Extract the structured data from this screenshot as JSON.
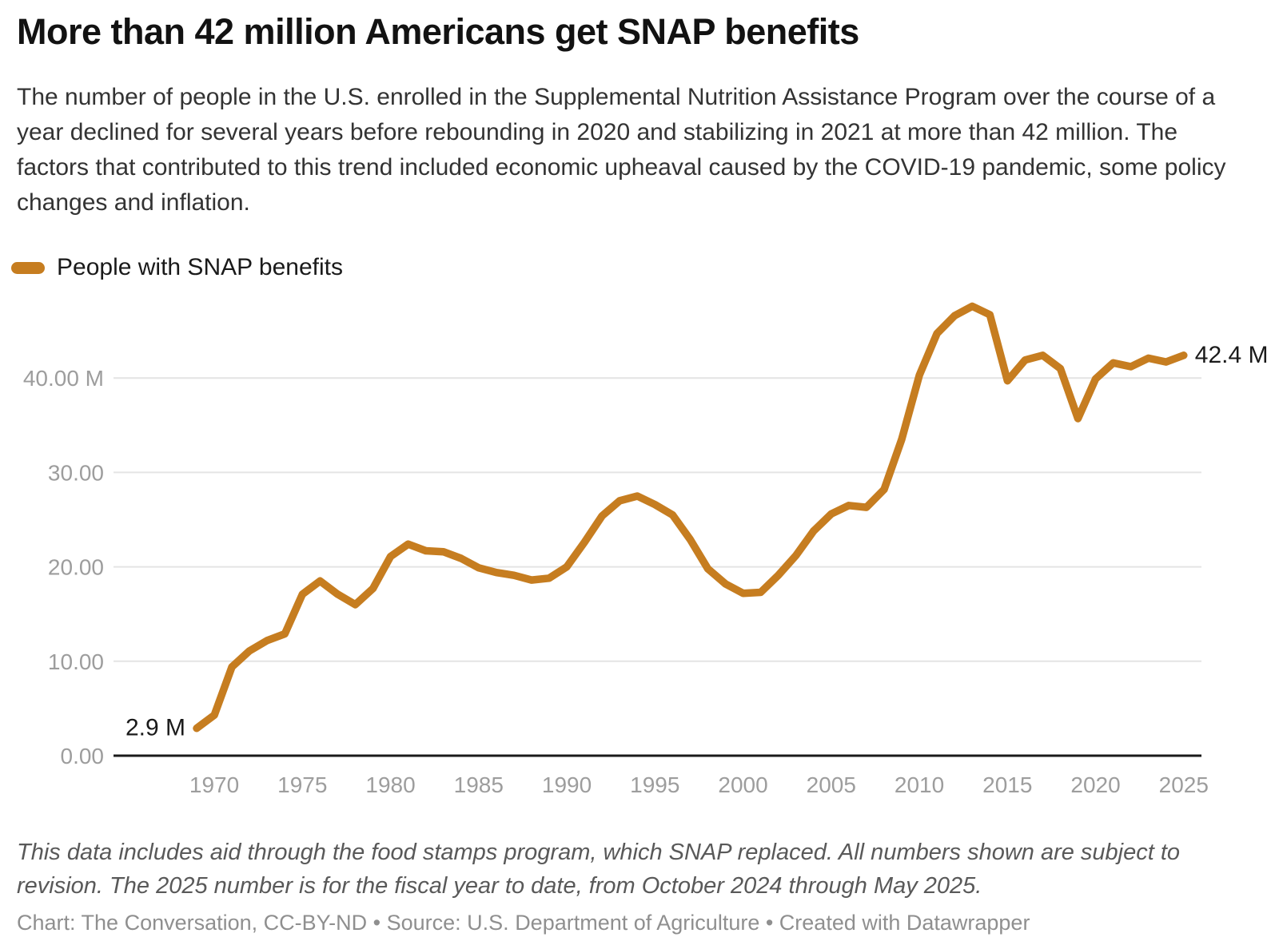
{
  "header": {
    "title": "More than 42 million Americans get SNAP benefits",
    "description": "The number of people in the U.S. enrolled in the Supplemental Nutrition Assistance Program over the course of a year declined for several years before rebounding in 2020 and stabilizing in 2021 at more than 42 million. The factors that contributed to this trend included economic upheaval caused by the COVID-19 pandemic, some policy changes and inflation."
  },
  "legend": {
    "label": "People with SNAP benefits"
  },
  "colors": {
    "accent": "#C67D20",
    "axis": "#1a1a1a",
    "grid": "#e4e4e4",
    "tick_text": "#9d9d9d",
    "value_label_text": "#1a1a1a"
  },
  "chart_data": {
    "type": "line",
    "title": "More than 42 million Americans get SNAP benefits",
    "xlabel": "",
    "ylabel": "",
    "unit": "millions of people",
    "grid": "horizontal",
    "legend_position": "top-left",
    "xlim": [
      1969,
      2025
    ],
    "ylim": [
      0,
      48.5
    ],
    "series": [
      {
        "name": "People with SNAP benefits",
        "color": "#C67D20"
      }
    ],
    "x": [
      1969,
      1970,
      1971,
      1972,
      1973,
      1974,
      1975,
      1976,
      1977,
      1978,
      1979,
      1980,
      1981,
      1982,
      1983,
      1984,
      1985,
      1986,
      1987,
      1988,
      1989,
      1990,
      1991,
      1992,
      1993,
      1994,
      1995,
      1996,
      1997,
      1998,
      1999,
      2000,
      2001,
      2002,
      2003,
      2004,
      2005,
      2006,
      2007,
      2008,
      2009,
      2010,
      2011,
      2012,
      2013,
      2014,
      2015,
      2016,
      2017,
      2018,
      2019,
      2020,
      2021,
      2022,
      2023,
      2024,
      2025
    ],
    "values": [
      2.9,
      4.3,
      9.4,
      11.1,
      12.2,
      12.9,
      17.1,
      18.5,
      17.1,
      16.0,
      17.7,
      21.1,
      22.4,
      21.7,
      21.6,
      20.9,
      19.9,
      19.4,
      19.1,
      18.6,
      18.8,
      20.0,
      22.6,
      25.4,
      27.0,
      27.5,
      26.6,
      25.5,
      22.9,
      19.8,
      18.2,
      17.2,
      17.3,
      19.1,
      21.2,
      23.8,
      25.6,
      26.5,
      26.3,
      28.2,
      33.5,
      40.3,
      44.7,
      46.6,
      47.6,
      46.7,
      39.7,
      41.9,
      42.4,
      41.0,
      35.7,
      39.9,
      41.6,
      41.2,
      42.1,
      41.7,
      42.4
    ],
    "y_ticks": [
      {
        "value": 0,
        "label": "0.00"
      },
      {
        "value": 10,
        "label": "10.00"
      },
      {
        "value": 20,
        "label": "20.00"
      },
      {
        "value": 30,
        "label": "30.00"
      },
      {
        "value": 40,
        "label": "40.00 M"
      }
    ],
    "x_ticks": [
      1970,
      1975,
      1980,
      1985,
      1990,
      1995,
      2000,
      2005,
      2010,
      2015,
      2020,
      2025
    ],
    "annotations": [
      {
        "year": 1969,
        "label": "2.9 M"
      },
      {
        "year": 2025,
        "label": "42.4 M"
      }
    ]
  },
  "footer": {
    "note": "This data includes aid through the food stamps program, which SNAP replaced. All numbers shown are subject to revision. The 2025 number is for the fiscal year to date, from October 2024 through May 2025.",
    "attribution": "Chart: The Conversation, CC-BY-ND • Source: U.S. Department of Agriculture • Created with Datawrapper"
  }
}
